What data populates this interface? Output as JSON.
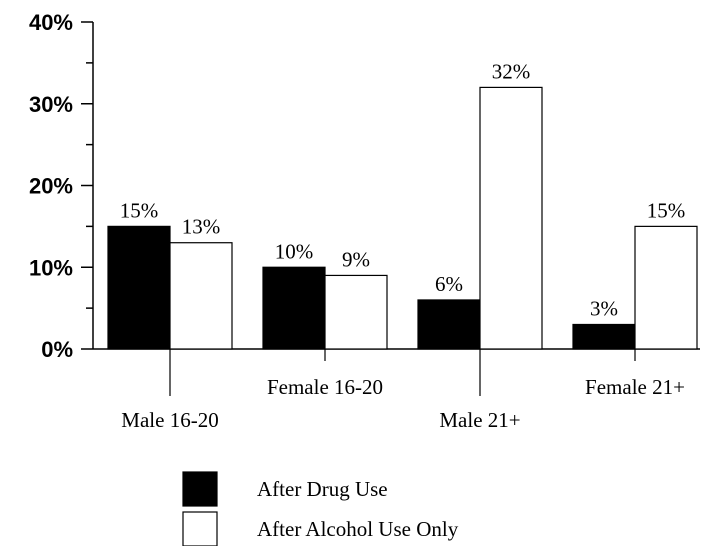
{
  "chart_data": {
    "type": "bar",
    "categories": [
      "Male 16-20",
      "Female 16-20",
      "Male 21+",
      "Female 21+"
    ],
    "series": [
      {
        "name": "After Drug Use",
        "values": [
          15,
          10,
          6,
          3
        ],
        "labels": [
          "15%",
          "10%",
          "6%",
          "3%"
        ],
        "color": "#000000"
      },
      {
        "name": "After Alcohol Use Only",
        "values": [
          13,
          9,
          32,
          15
        ],
        "labels": [
          "13%",
          "9%",
          "32%",
          "15%"
        ],
        "color": "#ffffff"
      }
    ],
    "ylim": [
      0,
      40
    ],
    "yticks": [
      0,
      10,
      20,
      30,
      40
    ],
    "ytick_labels": [
      "0%",
      "10%",
      "20%",
      "30%",
      "40%"
    ],
    "title": "",
    "xlabel": "",
    "ylabel": "",
    "grid": false,
    "legend": "bottom-center"
  }
}
